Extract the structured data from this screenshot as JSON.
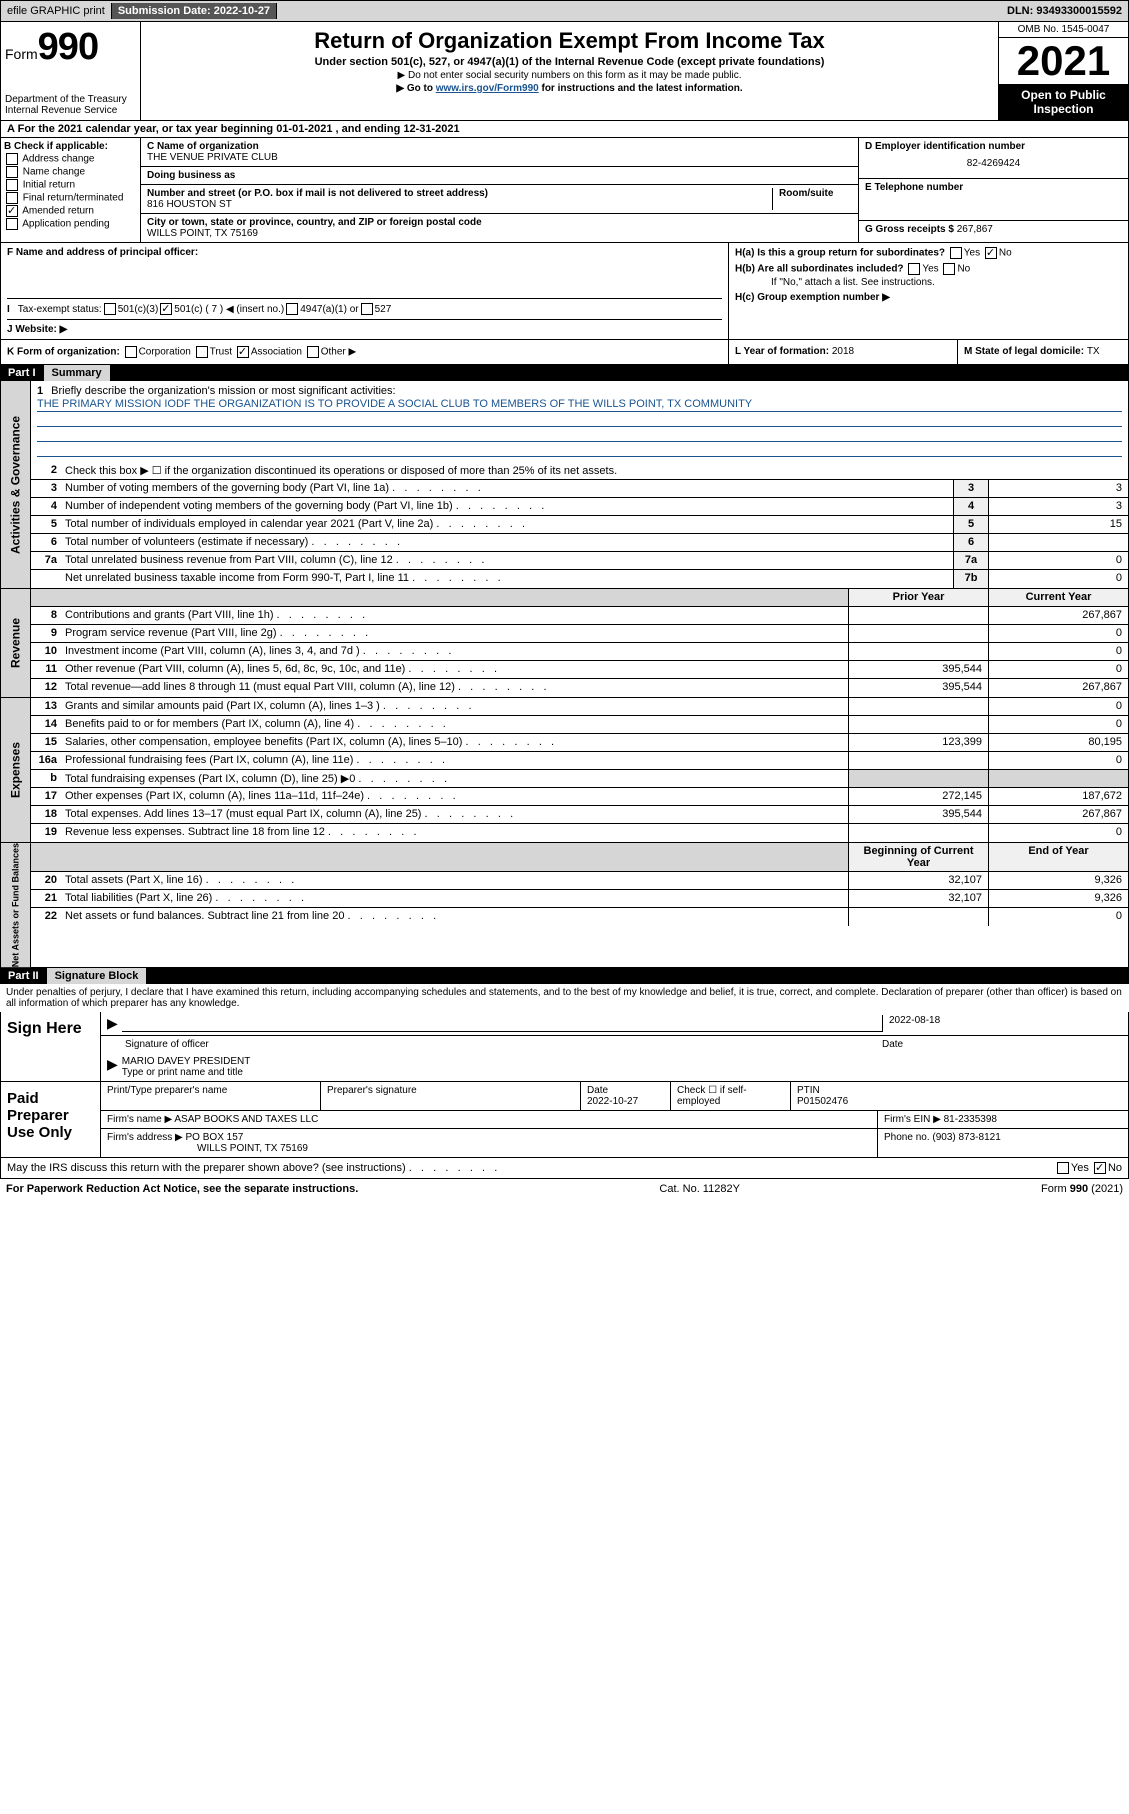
{
  "topbar": {
    "efile": "efile GRAPHIC print",
    "sub_lbl": "Submission Date: ",
    "sub_date": "2022-10-27",
    "dln_lbl": "DLN: ",
    "dln": "93493300015592"
  },
  "header": {
    "form": "Form",
    "form_no": "990",
    "dept": "Department of the Treasury",
    "irs": "Internal Revenue Service",
    "title": "Return of Organization Exempt From Income Tax",
    "sub": "Under section 501(c), 527, or 4947(a)(1) of the Internal Revenue Code (except private foundations)",
    "note1": "▶ Do not enter social security numbers on this form as it may be made public.",
    "note2a": "▶ Go to ",
    "note2_link": "www.irs.gov/Form990",
    "note2b": " for instructions and the latest information.",
    "omb": "OMB No. 1545-0047",
    "year": "2021",
    "open": "Open to Public Inspection"
  },
  "period": {
    "text": "For the 2021 calendar year, or tax year beginning 01-01-2021   , and ending 12-31-2021"
  },
  "secB": {
    "hdr": "B Check if applicable:",
    "opts": [
      "Address change",
      "Name change",
      "Initial return",
      "Final return/terminated",
      "Amended return",
      "Application pending"
    ],
    "checked_idx": 4
  },
  "secC": {
    "name_lbl": "C Name of organization",
    "name": "THE VENUE PRIVATE CLUB",
    "dba_lbl": "Doing business as",
    "addr_lbl": "Number and street (or P.O. box if mail is not delivered to street address)",
    "room_lbl": "Room/suite",
    "addr": "816 HOUSTON ST",
    "city_lbl": "City or town, state or province, country, and ZIP or foreign postal code",
    "city": "WILLS POINT, TX  75169"
  },
  "secD": {
    "ein_lbl": "D Employer identification number",
    "ein": "82-4269424",
    "tel_lbl": "E Telephone number",
    "gross_lbl": "G Gross receipts $ ",
    "gross": "267,867"
  },
  "secF": {
    "lbl": "F  Name and address of principal officer:"
  },
  "secH": {
    "a_lbl": "H(a)  Is this a group return for subordinates?",
    "b_lbl": "H(b)  Are all subordinates included?",
    "b_note": "If \"No,\" attach a list. See instructions.",
    "c_lbl": "H(c)  Group exemption number ▶",
    "yes": "Yes",
    "no": "No"
  },
  "secI": {
    "lbl": "Tax-exempt status:",
    "o1": "501(c)(3)",
    "o2": "501(c) ( 7 ) ◀ (insert no.)",
    "o3": "4947(a)(1) or",
    "o4": "527"
  },
  "secJ": {
    "lbl": "Website: ▶"
  },
  "secK": {
    "lbl": "K Form of organization:",
    "o1": "Corporation",
    "o2": "Trust",
    "o3": "Association",
    "o4": "Other ▶"
  },
  "secL": {
    "lbl": "L Year of formation: ",
    "val": "2018"
  },
  "secM": {
    "lbl": "M State of legal domicile: ",
    "val": "TX"
  },
  "part1": {
    "num": "Part I",
    "title": "Summary",
    "q1_lbl": "Briefly describe the organization's mission or most significant activities:",
    "q1_val": "THE PRIMARY MISSION IODF THE ORGANIZATION IS TO PROVIDE A SOCIAL CLUB TO MEMBERS OF THE WILLS POINT, TX COMMUNITY",
    "q2": "Check this box ▶ ☐  if the organization discontinued its operations or disposed of more than 25% of its net assets.",
    "side1": "Activities & Governance",
    "side2": "Revenue",
    "side3": "Expenses",
    "side4": "Net Assets or Fund Balances",
    "hdr_prior": "Prior Year",
    "hdr_curr": "Current Year",
    "hdr_beg": "Beginning of Current Year",
    "hdr_end": "End of Year",
    "rows_a": [
      {
        "n": "3",
        "t": "Number of voting members of the governing body (Part VI, line 1a)",
        "vn": "3",
        "v": "3"
      },
      {
        "n": "4",
        "t": "Number of independent voting members of the governing body (Part VI, line 1b)",
        "vn": "4",
        "v": "3"
      },
      {
        "n": "5",
        "t": "Total number of individuals employed in calendar year 2021 (Part V, line 2a)",
        "vn": "5",
        "v": "15"
      },
      {
        "n": "6",
        "t": "Total number of volunteers (estimate if necessary)",
        "vn": "6",
        "v": ""
      },
      {
        "n": "7a",
        "t": "Total unrelated business revenue from Part VIII, column (C), line 12",
        "vn": "7a",
        "v": "0"
      },
      {
        "n": "",
        "t": "Net unrelated business taxable income from Form 990-T, Part I, line 11",
        "vn": "7b",
        "v": "0"
      }
    ],
    "rows_r": [
      {
        "n": "8",
        "t": "Contributions and grants (Part VIII, line 1h)",
        "p": "",
        "c": "267,867"
      },
      {
        "n": "9",
        "t": "Program service revenue (Part VIII, line 2g)",
        "p": "",
        "c": "0"
      },
      {
        "n": "10",
        "t": "Investment income (Part VIII, column (A), lines 3, 4, and 7d )",
        "p": "",
        "c": "0"
      },
      {
        "n": "11",
        "t": "Other revenue (Part VIII, column (A), lines 5, 6d, 8c, 9c, 10c, and 11e)",
        "p": "395,544",
        "c": "0"
      },
      {
        "n": "12",
        "t": "Total revenue—add lines 8 through 11 (must equal Part VIII, column (A), line 12)",
        "p": "395,544",
        "c": "267,867"
      }
    ],
    "rows_e": [
      {
        "n": "13",
        "t": "Grants and similar amounts paid (Part IX, column (A), lines 1–3 )",
        "p": "",
        "c": "0"
      },
      {
        "n": "14",
        "t": "Benefits paid to or for members (Part IX, column (A), line 4)",
        "p": "",
        "c": "0"
      },
      {
        "n": "15",
        "t": "Salaries, other compensation, employee benefits (Part IX, column (A), lines 5–10)",
        "p": "123,399",
        "c": "80,195"
      },
      {
        "n": "16a",
        "t": "Professional fundraising fees (Part IX, column (A), line 11e)",
        "p": "",
        "c": "0"
      },
      {
        "n": "b",
        "t": "Total fundraising expenses (Part IX, column (D), line 25) ▶0",
        "p": "SHADE",
        "c": "SHADE"
      },
      {
        "n": "17",
        "t": "Other expenses (Part IX, column (A), lines 11a–11d, 11f–24e)",
        "p": "272,145",
        "c": "187,672"
      },
      {
        "n": "18",
        "t": "Total expenses. Add lines 13–17 (must equal Part IX, column (A), line 25)",
        "p": "395,544",
        "c": "267,867"
      },
      {
        "n": "19",
        "t": "Revenue less expenses. Subtract line 18 from line 12",
        "p": "",
        "c": "0"
      }
    ],
    "rows_n": [
      {
        "n": "20",
        "t": "Total assets (Part X, line 16)",
        "p": "32,107",
        "c": "9,326"
      },
      {
        "n": "21",
        "t": "Total liabilities (Part X, line 26)",
        "p": "32,107",
        "c": "9,326"
      },
      {
        "n": "22",
        "t": "Net assets or fund balances. Subtract line 21 from line 20",
        "p": "",
        "c": "0"
      }
    ]
  },
  "part2": {
    "num": "Part II",
    "title": "Signature Block",
    "decl": "Under penalties of perjury, I declare that I have examined this return, including accompanying schedules and statements, and to the best of my knowledge and belief, it is true, correct, and complete. Declaration of preparer (other than officer) is based on all information of which preparer has any knowledge."
  },
  "sign": {
    "here": "Sign Here",
    "sig_lbl": "Signature of officer",
    "date_lbl": "Date",
    "date": "2022-08-18",
    "officer": "MARIO DAVEY PRESIDENT",
    "type_lbl": "Type or print name and title"
  },
  "paid": {
    "lbl": "Paid Preparer Use Only",
    "h1": "Print/Type preparer's name",
    "h2": "Preparer's signature",
    "h3": "Date",
    "date": "2022-10-27",
    "h4": "Check ☐ if self-employed",
    "h5": "PTIN",
    "ptin": "P01502476",
    "firm_lbl": "Firm's name   ▶ ",
    "firm": "ASAP BOOKS AND TAXES LLC",
    "ein_lbl": "Firm's EIN ▶ ",
    "ein": "81-2335398",
    "addr_lbl": "Firm's address ▶ ",
    "addr1": "PO BOX 157",
    "addr2": "WILLS POINT, TX  75169",
    "phone_lbl": "Phone no. ",
    "phone": "(903) 873-8121"
  },
  "may": {
    "text": "May the IRS discuss this return with the preparer shown above? (see instructions)",
    "yes": "Yes",
    "no": "No"
  },
  "footer": {
    "l": "For Paperwork Reduction Act Notice, see the separate instructions.",
    "m": "Cat. No. 11282Y",
    "r": "Form 990 (2021)"
  }
}
